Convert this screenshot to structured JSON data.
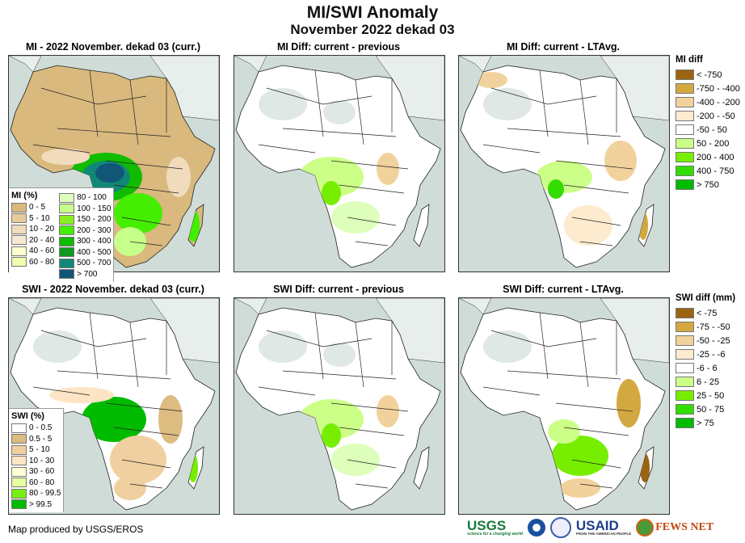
{
  "title": "MI/SWI Anomaly",
  "subtitle": "November 2022 dekad 03",
  "panels": [
    {
      "title": "MI - 2022 November. dekad 03 (curr.)",
      "scheme": "mi"
    },
    {
      "title": "MI Diff: current - previous",
      "scheme": "diff1"
    },
    {
      "title": "MI Diff: current - LTAvg.",
      "scheme": "diff2"
    },
    {
      "title": "SWI - 2022 November. dekad 03 (curr.)",
      "scheme": "swi"
    },
    {
      "title": "SWI Diff: current - previous",
      "scheme": "diff1"
    },
    {
      "title": "SWI Diff: current - LTAvg.",
      "scheme": "diff3"
    }
  ],
  "mi_legend": {
    "title": "MI (%)",
    "items": [
      {
        "label": "0 - 5",
        "color": "#d9b97e"
      },
      {
        "label": "5 - 10",
        "color": "#e6cc9a"
      },
      {
        "label": "10 - 20",
        "color": "#f0dcbc"
      },
      {
        "label": "20 - 40",
        "color": "#f7e8d2"
      },
      {
        "label": "40 - 60",
        "color": "#ffffd0"
      },
      {
        "label": "60 - 80",
        "color": "#eeffb0"
      },
      {
        "label": "80 - 100",
        "color": "#ddffbb"
      },
      {
        "label": "100 - 150",
        "color": "#c6ff8a"
      },
      {
        "label": "150 - 200",
        "color": "#88ee22"
      },
      {
        "label": "200 - 300",
        "color": "#44ee00"
      },
      {
        "label": "300 - 400",
        "color": "#11bb00"
      },
      {
        "label": "400 - 500",
        "color": "#119922"
      },
      {
        "label": "500 - 700",
        "color": "#118877"
      },
      {
        "label": "> 700",
        "color": "#115577"
      }
    ]
  },
  "swi_legend": {
    "title": "SWI (%)",
    "items": [
      {
        "label": "0 - 0.5",
        "color": "#ffffff"
      },
      {
        "label": "0.5 - 5",
        "color": "#dcbc80"
      },
      {
        "label": "5 - 10",
        "color": "#f0d0a0"
      },
      {
        "label": "10 - 30",
        "color": "#fde4c4"
      },
      {
        "label": "30 - 60",
        "color": "#ffffd6"
      },
      {
        "label": "60 - 80",
        "color": "#e6ffa0"
      },
      {
        "label": "80 - 99.5",
        "color": "#77ee11"
      },
      {
        "label": "> 99.5",
        "color": "#00bb00"
      }
    ]
  },
  "mi_diff_legend": {
    "title": "MI diff",
    "items": [
      {
        "label": "< -750",
        "color": "#9c6410"
      },
      {
        "label": "-750 - -400",
        "color": "#d4a840"
      },
      {
        "label": "-400 - -200",
        "color": "#f2d29c"
      },
      {
        "label": "-200 - -50",
        "color": "#fdebcf"
      },
      {
        "label": "-50 - 50",
        "color": "#ffffff"
      },
      {
        "label": "50 - 200",
        "color": "#ccff88"
      },
      {
        "label": "200 - 400",
        "color": "#77ee00"
      },
      {
        "label": "400 - 750",
        "color": "#33dd00"
      },
      {
        "label": "> 750",
        "color": "#00bb00"
      }
    ]
  },
  "swi_diff_legend": {
    "title": "SWI diff (mm)",
    "items": [
      {
        "label": "< -75",
        "color": "#9c6410"
      },
      {
        "label": "-75 - -50",
        "color": "#d4a840"
      },
      {
        "label": "-50 - -25",
        "color": "#f2d29c"
      },
      {
        "label": "-25 - -6",
        "color": "#fdebcf"
      },
      {
        "label": "-6 - 6",
        "color": "#ffffff"
      },
      {
        "label": "6 - 25",
        "color": "#ccff88"
      },
      {
        "label": "25 - 50",
        "color": "#77ee00"
      },
      {
        "label": "50 - 75",
        "color": "#33dd00"
      },
      {
        "label": "> 75",
        "color": "#00bb00"
      }
    ]
  },
  "footer": "Map produced by USGS/EROS",
  "logos": {
    "usgs": "USGS",
    "usgs_tag": "science for a changing world",
    "usaid": "USAID",
    "usaid_tag": "FROM THE AMERICAN PEOPLE",
    "fews": "FEWS NET"
  }
}
